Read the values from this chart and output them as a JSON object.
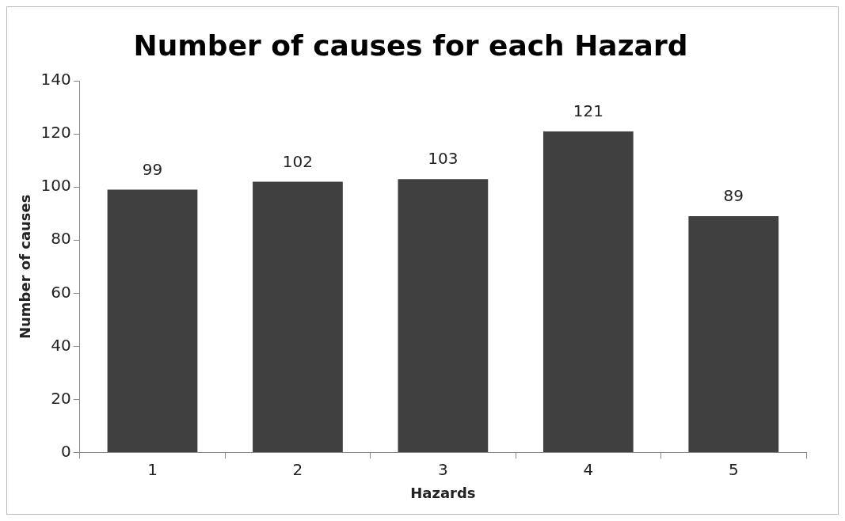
{
  "chart_data": {
    "type": "bar",
    "title": "Number of causes for each Hazard",
    "xlabel": "Hazards",
    "ylabel": "Number of causes",
    "categories": [
      "1",
      "2",
      "3",
      "4",
      "5"
    ],
    "values": [
      99,
      102,
      103,
      121,
      89
    ],
    "color": "#404040",
    "ylim": [
      0,
      140
    ],
    "yticks": [
      0,
      20,
      40,
      60,
      80,
      100,
      120,
      140
    ],
    "data_labels": true
  }
}
